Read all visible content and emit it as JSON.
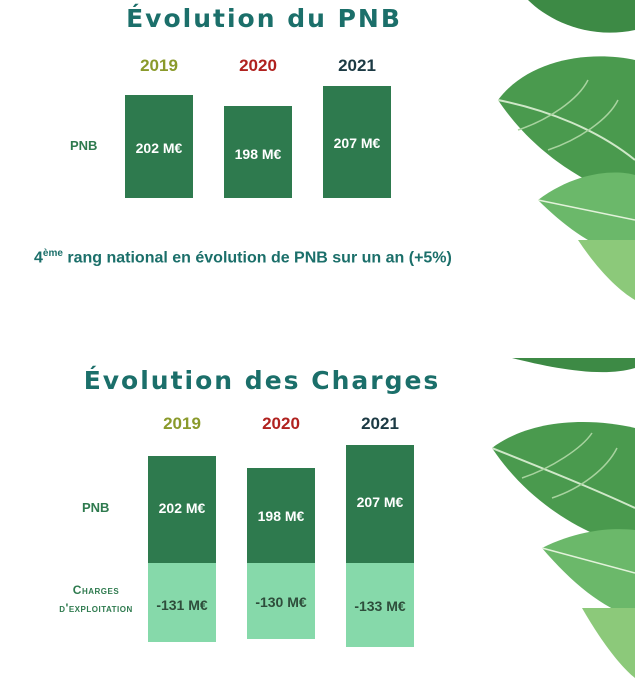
{
  "colors": {
    "title": "#1b6f6a",
    "year_2019": "#8a9a2b",
    "year_2020": "#b0221f",
    "year_2021": "#1c3a44",
    "pnb_bar": "#2e7a4e",
    "charges_bar": "#86d9aa",
    "label": "#2e7a4e",
    "note": "#1b6f6a",
    "charges_text": "#2e4d3b"
  },
  "icons": [
    "tropical-leaves-top",
    "tropical-leaves-bottom"
  ],
  "chart_data": [
    {
      "type": "bar",
      "title": "Évolution du PNB",
      "categories": [
        "2019",
        "2020",
        "2021"
      ],
      "series": [
        {
          "name": "PNB",
          "values": [
            202,
            198,
            207
          ],
          "labels": [
            "202 M€",
            "198 M€",
            "207 M€"
          ]
        }
      ],
      "note": {
        "rank": "4",
        "suffix": "ème",
        "text": " rang national en évolution de PNB sur un an (+5%)"
      }
    },
    {
      "type": "bar",
      "title": "Évolution des Charges",
      "categories": [
        "2019",
        "2020",
        "2021"
      ],
      "series": [
        {
          "name": "PNB",
          "values": [
            202,
            198,
            207
          ],
          "labels": [
            "202 M€",
            "198 M€",
            "207 M€"
          ]
        },
        {
          "name": "Charges d'exploitation",
          "display_name_1": "Charges",
          "display_name_2": "d'exploitation",
          "values": [
            -131,
            -130,
            -133
          ],
          "labels": [
            "-131 M€",
            "-130 M€",
            "-133 M€"
          ]
        }
      ]
    }
  ]
}
